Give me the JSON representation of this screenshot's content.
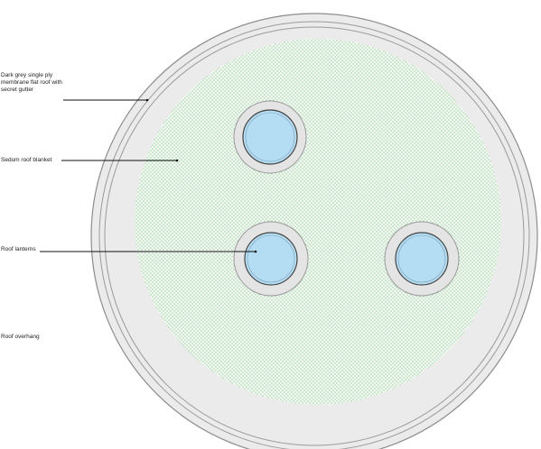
{
  "labels": {
    "membrane": "Dark grey single ply\nmembrane flat roof with\nsecret gutter",
    "sedum": "Sedum roof blanket",
    "lanterns": "Roof lanterns",
    "overhang": "Roof overhang"
  },
  "colors": {
    "overhang_fill": "#ebebeb",
    "ring_stroke": "#9a9a9a",
    "sedum_fill": "#f3f8f3",
    "sedum_dot": "#3aa846",
    "lantern_glass": "#b4dcf2",
    "lantern_surround": "#e4e4e4",
    "leader_line": "#111111"
  }
}
